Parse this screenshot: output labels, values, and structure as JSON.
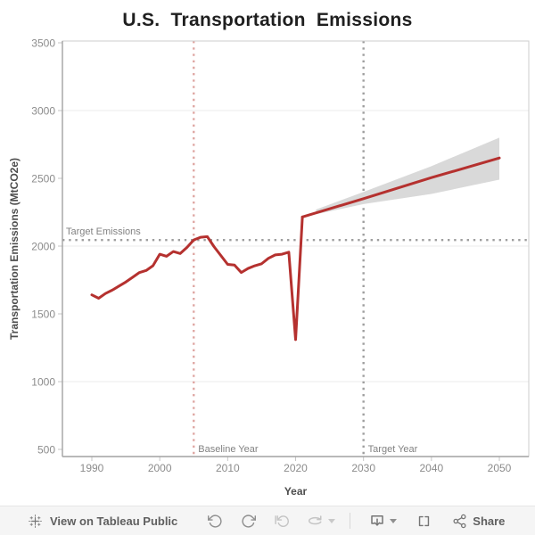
{
  "title": "U.S. Transportation Emissions",
  "chart_data": {
    "type": "line",
    "title": "U.S. Transportation Emissions",
    "xlabel": "Year",
    "ylabel": "Transportation Emissions (MtCO2e)",
    "ylim": [
      500,
      3500
    ],
    "xlim": [
      1985,
      2054
    ],
    "x_ticks": [
      1990,
      2000,
      2010,
      2020,
      2030,
      2040,
      2050
    ],
    "y_ticks": [
      500,
      1000,
      1500,
      2000,
      2500,
      3000,
      3500
    ],
    "gridline_values": [
      1000,
      2000,
      3000
    ],
    "colors": {
      "line": "#b5312f",
      "band": "#d9d9d9",
      "baseline_line": "#dfa7a3",
      "gray_dotted": "#9e9e9e",
      "gridline": "#ebebeb",
      "border": "#cdcdcd",
      "axis_line": "#a2a2a2",
      "tick": "#c6c6c6"
    },
    "series": [
      {
        "name": "historical",
        "x": [
          1990,
          1991,
          1992,
          1993,
          1994,
          1995,
          1996,
          1997,
          1998,
          1999,
          2000,
          2001,
          2002,
          2003,
          2004,
          2005,
          2006,
          2007,
          2008,
          2009,
          2010,
          2011,
          2012,
          2013,
          2014,
          2015,
          2016,
          2017,
          2018,
          2019,
          2020,
          2021
        ],
        "y": [
          1640,
          1615,
          1650,
          1675,
          1705,
          1735,
          1770,
          1805,
          1820,
          1855,
          1940,
          1925,
          1960,
          1945,
          1990,
          2045,
          2065,
          2070,
          1995,
          1930,
          1865,
          1860,
          1805,
          1835,
          1855,
          1870,
          1910,
          1935,
          1940,
          1955,
          1310,
          2215
        ]
      },
      {
        "name": "projection",
        "x": [
          2021,
          2030,
          2040,
          2050
        ],
        "y": [
          2215,
          2350,
          2505,
          2650
        ]
      }
    ],
    "band": {
      "name": "projection-uncertainty",
      "x": [
        2023,
        2030,
        2040,
        2050
      ],
      "upper": [
        2270,
        2400,
        2590,
        2800
      ],
      "lower": [
        2235,
        2310,
        2385,
        2490
      ]
    },
    "annotations": [
      {
        "id": "target_emissions",
        "label": "Target Emissions",
        "orientation": "horizontal",
        "value": 2045,
        "color": "#9e9e9e"
      },
      {
        "id": "baseline_year",
        "label": "Baseline Year",
        "orientation": "vertical",
        "value": 2005,
        "color": "#dfa7a3"
      },
      {
        "id": "target_year",
        "label": "Target Year",
        "orientation": "vertical",
        "value": 2030,
        "color": "#9e9e9e"
      }
    ],
    "legend": {
      "visible": false
    },
    "grid": "horizontal-only"
  },
  "toolbar": {
    "view_link": "View on Tableau Public",
    "share_label": "Share",
    "icons": [
      {
        "name": "tableau-logo",
        "enabled": true
      },
      {
        "name": "undo-icon",
        "enabled": true
      },
      {
        "name": "redo-icon",
        "enabled": true
      },
      {
        "name": "revert-icon",
        "enabled": false
      },
      {
        "name": "refresh-icon",
        "enabled": false
      },
      {
        "name": "download-icon",
        "enabled": true
      },
      {
        "name": "fullscreen-icon",
        "enabled": true
      },
      {
        "name": "share-icon",
        "enabled": true
      }
    ]
  }
}
